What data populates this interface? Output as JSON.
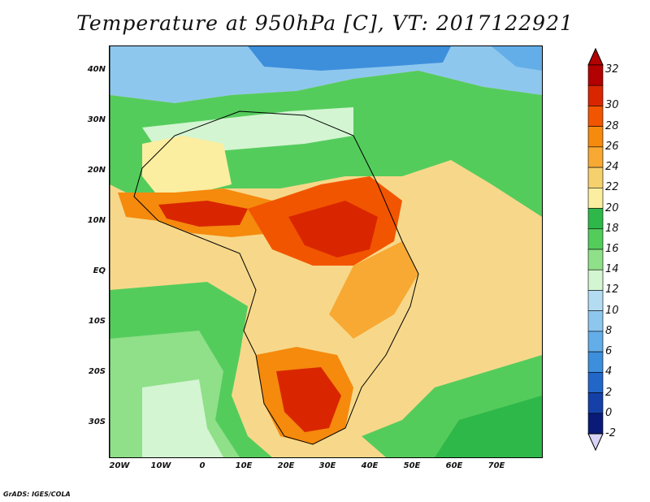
{
  "title": "Temperature at 950hPa [C], VT: 2017122921",
  "credit": "GrADS: IGES/COLA",
  "map": {
    "region": "Africa",
    "lat_labels": [
      "40N",
      "30N",
      "20N",
      "10N",
      "EQ",
      "10S",
      "20S",
      "30S"
    ],
    "lon_labels": [
      "20W",
      "10W",
      "0",
      "10E",
      "20E",
      "30E",
      "40E",
      "50E",
      "60E",
      "70E"
    ]
  },
  "colorbar": {
    "labels": [
      "32",
      "30",
      "28",
      "26",
      "24",
      "22",
      "20",
      "18",
      "16",
      "14",
      "12",
      "10",
      "8",
      "6",
      "4",
      "2",
      "0",
      "-2"
    ],
    "colors": [
      "#b30000",
      "#d92600",
      "#f25500",
      "#f58a0d",
      "#f7a933",
      "#f7d06e",
      "#fbeea0",
      "#2fb84a",
      "#54cc5c",
      "#8fe089",
      "#d3f5d2",
      "#b3dcf2",
      "#8ec7ee",
      "#63aee8",
      "#3d8fdc",
      "#2266c8",
      "#1540a8",
      "#0a1a78"
    ]
  },
  "chart_data": {
    "type": "heatmap",
    "variable": "Temperature at 950hPa",
    "units": "C",
    "valid_time": "2017122921",
    "lon_range": [
      -23,
      80
    ],
    "lat_range": [
      -36,
      45
    ],
    "contour_levels": [
      -2,
      0,
      2,
      4,
      6,
      8,
      10,
      12,
      14,
      16,
      18,
      20,
      22,
      24,
      26,
      28,
      30,
      32
    ]
  }
}
